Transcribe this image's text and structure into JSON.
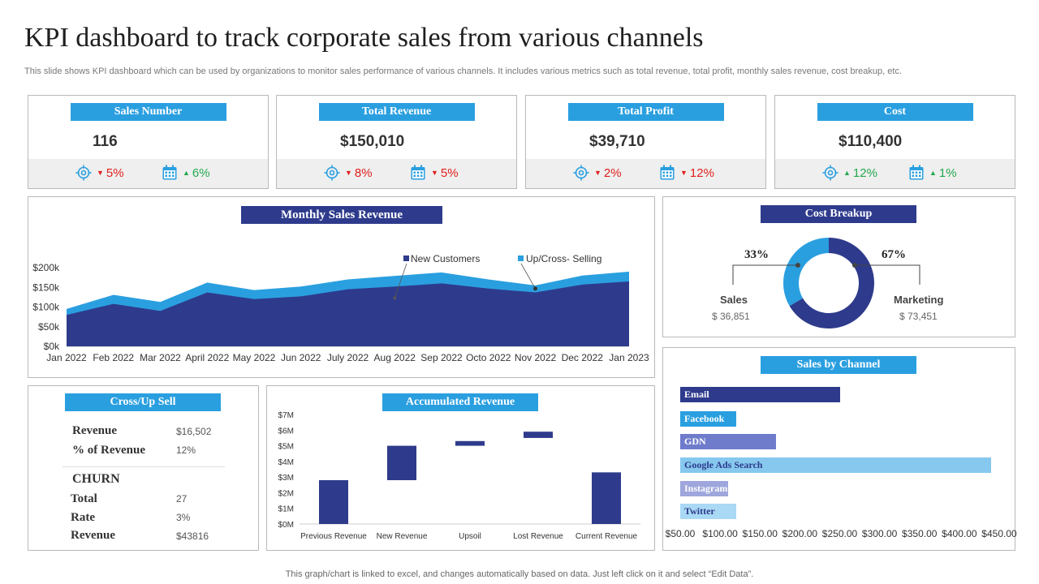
{
  "header": {
    "title": "KPI dashboard to track corporate sales from various channels",
    "subtitle": "This slide shows KPI dashboard which can be used by organizations to monitor sales performance of various channels. It includes various metrics such as total revenue, total profit, monthly sales revenue, cost breakup, etc."
  },
  "footer": "This graph/chart is linked to excel,  and changes automatically based on data. Just left click on it and select “Edit Data”.",
  "colors": {
    "navy": "#2e3b8c",
    "blue": "#2a9fe0",
    "red": "#e0201c",
    "green": "#23a84e"
  },
  "kpis": [
    {
      "title": "Sales Number",
      "value": "116",
      "m1": "5%",
      "m1_dir": "down",
      "m2": "6%",
      "m2_dir": "up"
    },
    {
      "title": "Total Revenue",
      "value": "$150,010",
      "m1": "8%",
      "m1_dir": "down",
      "m2": "5%",
      "m2_dir": "down"
    },
    {
      "title": "Total Profit",
      "value": "$39,710",
      "m1": "2%",
      "m1_dir": "down",
      "m2": "12%",
      "m2_dir": "down"
    },
    {
      "title": "Cost",
      "value": "$110,400",
      "m1": "12%",
      "m1_dir": "up",
      "m2": "1%",
      "m2_dir": "up"
    }
  ],
  "kpi_icons": {
    "m1": "target-icon",
    "m2": "calendar-icon"
  },
  "monthly": {
    "title": "Monthly Sales Revenue",
    "legend1": "New Customers",
    "legend2": "Up/Cross- Selling"
  },
  "cost_breakup": {
    "title": "Cost Breakup",
    "sales_pct": "33%",
    "marketing_pct": "67%",
    "sales_label": "Sales",
    "sales_value": "$ 36,851",
    "marketing_label": "Marketing",
    "marketing_value": "$ 73,451"
  },
  "cross_up": {
    "title": "Cross/Up Sell",
    "revenue_label": "Revenue",
    "revenue_value": "$16,502",
    "pct_label": "% of Revenue",
    "pct_value": "12%",
    "churn_label": "CHURN",
    "total_label": "Total",
    "total_value": "27",
    "rate_label": "Rate",
    "rate_value": "3%",
    "churn_rev_label": "Revenue",
    "churn_rev_value": "$43816"
  },
  "accumulated_title": "Accumulated Revenue",
  "sales_by_channel_title": "Sales by Channel",
  "chart_data": [
    {
      "type": "area",
      "title": "Monthly Sales Revenue",
      "categories": [
        "Jan 2022",
        "Feb 2022",
        "Mar 2022",
        "April 2022",
        "May 2022",
        "Jun 2022",
        "July 2022",
        "Aug 2022",
        "Sep 2022",
        "Octo 2022",
        "Nov 2022",
        "Dec 2022",
        "Jan 2023"
      ],
      "series": [
        {
          "name": "New Customers",
          "values": [
            80000,
            108000,
            90000,
            137000,
            120000,
            127000,
            145000,
            152000,
            160000,
            147000,
            137000,
            157000,
            165000
          ],
          "color": "#2e3b8c"
        },
        {
          "name": "Up/Cross- Selling",
          "values": [
            15000,
            23000,
            23000,
            25000,
            23000,
            25000,
            25000,
            27000,
            28000,
            23000,
            18000,
            23000,
            25000
          ],
          "color": "#2a9fe0"
        }
      ],
      "stacked": true,
      "ylim": [
        0,
        200000
      ],
      "yticks": [
        0,
        50000,
        100000,
        150000,
        200000
      ],
      "ytick_labels": [
        "$0k",
        "$50k",
        "$100k",
        "$150k",
        "$200k"
      ],
      "legend": "top-right"
    },
    {
      "type": "pie",
      "title": "Cost Breakup",
      "labels": [
        "Sales",
        "Marketing"
      ],
      "values": [
        36851,
        73451
      ],
      "percent_labels": [
        "33%",
        "67%"
      ],
      "colors": [
        "#2a9fe0",
        "#2e3b8c"
      ]
    },
    {
      "type": "bar",
      "subtype": "waterfall",
      "title": "Accumulated Revenue",
      "categories": [
        "Previous Revenue",
        "New Revenue",
        "Upsoil",
        "Lost Revenue",
        "Current Revenue"
      ],
      "bars": [
        {
          "start": 0,
          "end": 2.8
        },
        {
          "start": 2.8,
          "end": 5.0
        },
        {
          "start": 5.0,
          "end": 5.3
        },
        {
          "start": 5.5,
          "end": 5.9
        },
        {
          "start": 0,
          "end": 3.3
        }
      ],
      "ylim": [
        0,
        7
      ],
      "ytick_labels": [
        "$0M",
        "$1M",
        "$2M",
        "$3M",
        "$4M",
        "$5M",
        "$6M",
        "$7M"
      ],
      "color": "#2e3b8c"
    },
    {
      "type": "bar",
      "orientation": "horizontal",
      "title": "Sales by Channel",
      "categories": [
        "Email",
        "Facebook",
        "GDN",
        "Google Ads Search",
        "Instagram",
        "Twitter"
      ],
      "values": [
        250,
        120,
        170,
        440,
        110,
        120
      ],
      "colors": [
        "#2e3b8c",
        "#2a9fe0",
        "#6f7ccc",
        "#86c8ee",
        "#9ea6dc",
        "#a9d9f5"
      ],
      "xlim": [
        50,
        450
      ],
      "xtick_labels": [
        "$50.00",
        "$100.00",
        "$150.00",
        "$200.00",
        "$250.00",
        "$300.00",
        "$350.00",
        "$400.00",
        "$450.00"
      ]
    }
  ]
}
